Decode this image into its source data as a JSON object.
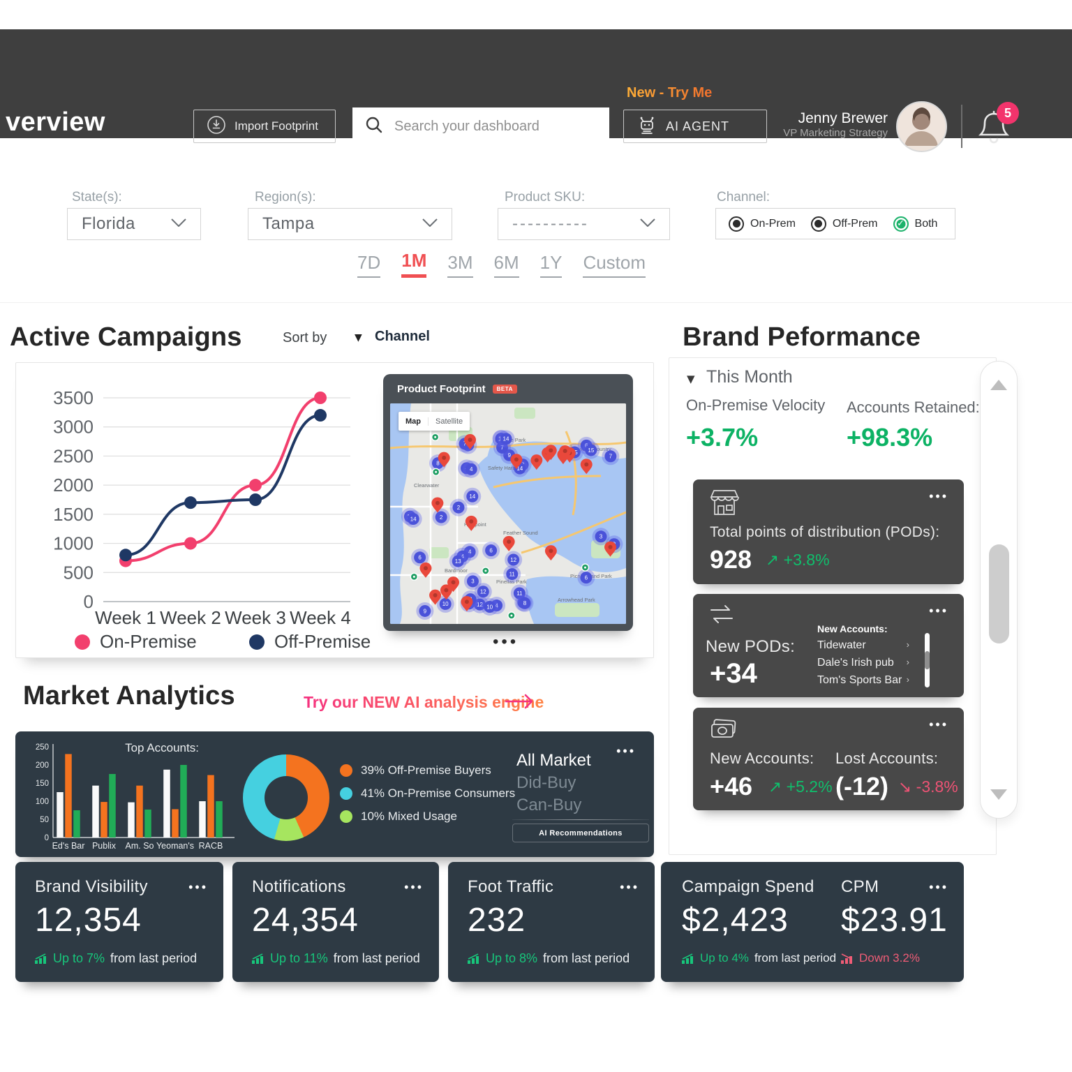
{
  "header": {
    "title": "verview",
    "import_button": "Import Footprint",
    "search_placeholder": "Search your dashboard",
    "promo": "New - Try Me",
    "ai_agent_button": "AI AGENT",
    "user_name": "Jenny Brewer",
    "user_role": "VP Marketing Strategy",
    "notification_count": "5"
  },
  "filters": {
    "state": {
      "label": "State(s):",
      "value": "Florida"
    },
    "region": {
      "label": "Region(s):",
      "value": "Tampa"
    },
    "sku": {
      "label": "Product SKU:",
      "value": "----------"
    },
    "channel": {
      "label": "Channel:",
      "options": [
        {
          "label": "On-Prem",
          "selected": false
        },
        {
          "label": "Off-Prem",
          "selected": false
        },
        {
          "label": "Both",
          "selected": true
        }
      ]
    }
  },
  "time_tabs": {
    "items": [
      "7D",
      "1M",
      "3M",
      "6M",
      "1Y",
      "Custom"
    ],
    "active": "1M"
  },
  "active_campaigns": {
    "title": "Active Campaigns",
    "sort_by_label": "Sort by",
    "sort_caret": "▼",
    "sort_value": "Channel",
    "ellipsis": "•••",
    "map": {
      "title": "Product Footprint",
      "badge": "BETA",
      "controls": [
        "Map",
        "Satellite"
      ],
      "labels": [
        "Philippe Park",
        "Town 'N Country",
        "Safety Harbor",
        "Clearwater",
        "Highpoint",
        "Feather Sound",
        "Bardmoor",
        "Pinellas Park",
        "Picnic Island Park",
        "Arrowhead Park"
      ]
    }
  },
  "chart_data": [
    {
      "type": "line",
      "x": [
        "Week 1",
        "Week 2",
        "Week 3",
        "Week 4"
      ],
      "series": [
        {
          "name": "On-Premise",
          "color": "#F23F6D",
          "values": [
            700,
            1000,
            2000,
            3500
          ]
        },
        {
          "name": "Off-Premise",
          "color": "#1F3864",
          "values": [
            800,
            1700,
            1750,
            3200
          ]
        }
      ],
      "ylim": [
        0,
        3500
      ],
      "ytick_step": 500,
      "grid": true,
      "legend_position": "bottom"
    },
    {
      "type": "bar",
      "title": "Top Accounts:",
      "categories": [
        "Ed's Bar",
        "Publix",
        "Am. So",
        "Yeoman's",
        "RACB"
      ],
      "series": [
        {
          "name": "white",
          "color": "#FAFAFA",
          "values": [
            125,
            143,
            97,
            187,
            100
          ]
        },
        {
          "name": "orange",
          "color": "#F4731F",
          "values": [
            230,
            98,
            143,
            78,
            172
          ]
        },
        {
          "name": "green",
          "color": "#21AC57",
          "values": [
            75,
            175,
            77,
            200,
            100
          ]
        }
      ],
      "ylim": [
        0,
        250
      ],
      "ytick_step": 50
    },
    {
      "type": "pie",
      "slices": [
        {
          "label": "39% Off-Premise Buyers",
          "pct": 39,
          "color": "#F4731F"
        },
        {
          "label": "41% On-Premise Consumers",
          "pct": 41,
          "color": "#45D0E0"
        },
        {
          "label": "10% Mixed Usage",
          "pct": 10,
          "color": "#A6E55F"
        }
      ],
      "draw_order": [
        0,
        2,
        1
      ]
    }
  ],
  "brand_performance": {
    "title": "Brand Peformance",
    "period": "This Month",
    "caret": "▼",
    "metric1": {
      "label": "On-Premise Velocity",
      "value": "+3.7%"
    },
    "metric2": {
      "label": "Accounts Retained:",
      "value": "+98.3%"
    },
    "pods_card": {
      "label": "Total points of distribution (PODs):",
      "value": "928",
      "arrow": "↗",
      "delta": "+3.8%"
    },
    "new_pods_card": {
      "label": "New PODs:",
      "value": "+34",
      "list_title": "New Accounts:",
      "accounts": [
        "Tidewater",
        "Dale's Irish pub",
        "Tom's Sports Bar"
      ],
      "chevron": "›"
    },
    "accounts_card": {
      "new_label": "New Accounts:",
      "new_value": "+46",
      "new_arrow": "↗",
      "new_delta": "+5.2%",
      "lost_label": "Lost Accounts:",
      "lost_value": "(-12)",
      "lost_arrow": "↘",
      "lost_delta": "-3.8%"
    },
    "ellipsis": "•••"
  },
  "market_analytics": {
    "title": "Market Analytics",
    "cta": "Try our NEW AI analysis engine",
    "links": [
      "All Market",
      "Did-Buy",
      "Can-Buy"
    ],
    "ai_button": "AI Recommendations",
    "ellipsis": "•••"
  },
  "stat_cards": [
    {
      "title": "Brand Visibility",
      "value": "12,354",
      "delta": "Up to 7%",
      "suffix": "from last period",
      "dir": "up"
    },
    {
      "title": "Notifications",
      "value": "24,354",
      "delta": "Up to 11%",
      "suffix": "from last period",
      "dir": "up"
    },
    {
      "title": "Foot Traffic",
      "value": "232",
      "delta": "Up to 8%",
      "suffix": "from last period",
      "dir": "up"
    },
    {
      "title": "Campaign Spend",
      "value": "$2,423",
      "delta": "Up to 4%",
      "suffix": "from last period",
      "dir": "up"
    },
    {
      "title": "CPM",
      "value": "$23.91",
      "delta": "Down 3.2%",
      "suffix": "",
      "dir": "down"
    }
  ],
  "colors": {
    "header_bg": "#3F3F3F",
    "dark_card": "#484848",
    "slate_card": "#2E3A44",
    "accent_pink": "#F23F6D",
    "accent_navy": "#1F3864",
    "positive_green": "#0CB264",
    "negative_red": "#EE5375",
    "tab_red": "#F04F52"
  }
}
